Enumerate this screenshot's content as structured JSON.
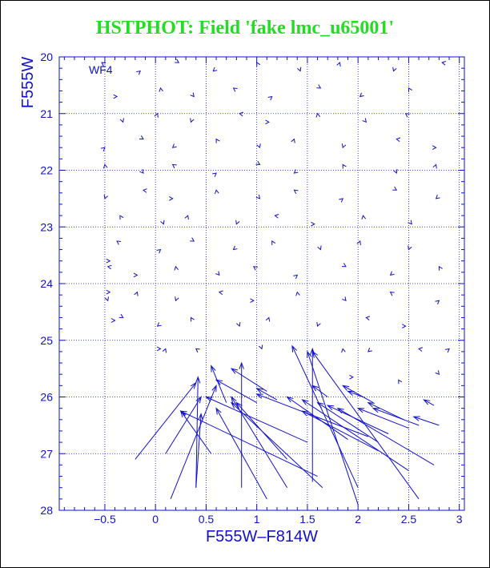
{
  "title": "HSTPHOT: Field 'fake lmc_u65001'",
  "panel_label": "WF4",
  "colors": {
    "title": "#22dd22",
    "axes": "#1010cc",
    "vectors": "#1010cc",
    "background": "#ffffff"
  },
  "chart_data": {
    "type": "quiver",
    "xlabel": "F555W–F814W",
    "ylabel": "F555W",
    "xlim": [
      -0.95,
      3.05
    ],
    "ylim": [
      28,
      20
    ],
    "y_inverted": true,
    "grid": true,
    "grid_style": "dotted",
    "x_ticks": [
      -0.5,
      0,
      0.5,
      1,
      1.5,
      2,
      2.5,
      3
    ],
    "x_tick_labels": [
      "−0.5",
      "0",
      "0.5",
      "1",
      "1.5",
      "2",
      "2.5",
      "3"
    ],
    "y_ticks": [
      20,
      21,
      22,
      23,
      24,
      25,
      26,
      27,
      28
    ],
    "y_tick_labels": [
      "20",
      "21",
      "22",
      "23",
      "24",
      "25",
      "26",
      "27",
      "28"
    ],
    "vectors": [
      {
        "x": -0.2,
        "y": 27.1,
        "dx": 0.6,
        "dy": -1.35
      },
      {
        "x": 0.1,
        "y": 27.0,
        "dx": 0.35,
        "dy": -1.0
      },
      {
        "x": 0.4,
        "y": 27.6,
        "dx": 0.02,
        "dy": -1.95
      },
      {
        "x": 0.4,
        "y": 27.6,
        "dx": 0.05,
        "dy": -1.3
      },
      {
        "x": 0.85,
        "y": 27.6,
        "dx": 0.0,
        "dy": -2.2
      },
      {
        "x": 1.55,
        "y": 27.5,
        "dx": 0.0,
        "dy": -2.35
      },
      {
        "x": 0.15,
        "y": 27.8,
        "dx": 0.45,
        "dy": -2.0
      },
      {
        "x": 0.55,
        "y": 27.0,
        "dx": -0.3,
        "dy": -0.75
      },
      {
        "x": 1.1,
        "y": 27.8,
        "dx": -0.5,
        "dy": -1.6
      },
      {
        "x": 1.3,
        "y": 27.6,
        "dx": -0.55,
        "dy": -1.6
      },
      {
        "x": 1.65,
        "y": 27.6,
        "dx": -0.9,
        "dy": -1.5
      },
      {
        "x": 1.3,
        "y": 27.1,
        "dx": -0.5,
        "dy": -1.0
      },
      {
        "x": 2.0,
        "y": 27.6,
        "dx": -0.65,
        "dy": -2.5
      },
      {
        "x": 2.0,
        "y": 27.9,
        "dx": -0.5,
        "dy": -2.7
      },
      {
        "x": 2.6,
        "y": 27.8,
        "dx": -1.05,
        "dy": -2.6
      },
      {
        "x": 0.7,
        "y": 26.1,
        "dx": -0.15,
        "dy": -0.65
      },
      {
        "x": 1.5,
        "y": 26.8,
        "dx": -1.0,
        "dy": -0.8
      },
      {
        "x": 1.6,
        "y": 27.4,
        "dx": -1.35,
        "dy": -1.15
      },
      {
        "x": 2.1,
        "y": 26.7,
        "dx": -1.1,
        "dy": -0.75
      },
      {
        "x": 2.5,
        "y": 27.3,
        "dx": -1.05,
        "dy": -1.25
      },
      {
        "x": 2.75,
        "y": 27.2,
        "dx": -0.95,
        "dy": -1.0
      },
      {
        "x": 2.2,
        "y": 26.95,
        "dx": -0.75,
        "dy": -0.7
      },
      {
        "x": 2.2,
        "y": 26.8,
        "dx": -0.6,
        "dy": -0.7
      },
      {
        "x": 1.9,
        "y": 26.75,
        "dx": -0.6,
        "dy": -0.75
      },
      {
        "x": 2.3,
        "y": 26.65,
        "dx": -0.6,
        "dy": -0.5
      },
      {
        "x": 2.5,
        "y": 26.55,
        "dx": -0.5,
        "dy": -0.35
      },
      {
        "x": 2.6,
        "y": 26.5,
        "dx": -0.45,
        "dy": -0.3
      },
      {
        "x": 2.45,
        "y": 26.4,
        "dx": -0.35,
        "dy": -0.3
      },
      {
        "x": 2.8,
        "y": 26.5,
        "dx": -0.25,
        "dy": -0.15
      },
      {
        "x": 1.1,
        "y": 25.9,
        "dx": -0.35,
        "dy": -0.4
      },
      {
        "x": 1.0,
        "y": 26.1,
        "dx": -0.4,
        "dy": -0.4
      },
      {
        "x": 2.15,
        "y": 26.1,
        "dx": -0.3,
        "dy": -0.3
      },
      {
        "x": 2.75,
        "y": 26.15,
        "dx": -0.1,
        "dy": -0.1
      },
      {
        "x": 1.2,
        "y": 26.05,
        "dx": -0.2,
        "dy": -0.2
      },
      {
        "x": 1.7,
        "y": 26.0,
        "dx": -0.15,
        "dy": -0.2
      },
      {
        "x": 2.05,
        "y": 26.0,
        "dx": -0.15,
        "dy": -0.1
      }
    ],
    "small_markers_note": "Short V-shaped marks at grid positions represent near-zero offsets."
  }
}
